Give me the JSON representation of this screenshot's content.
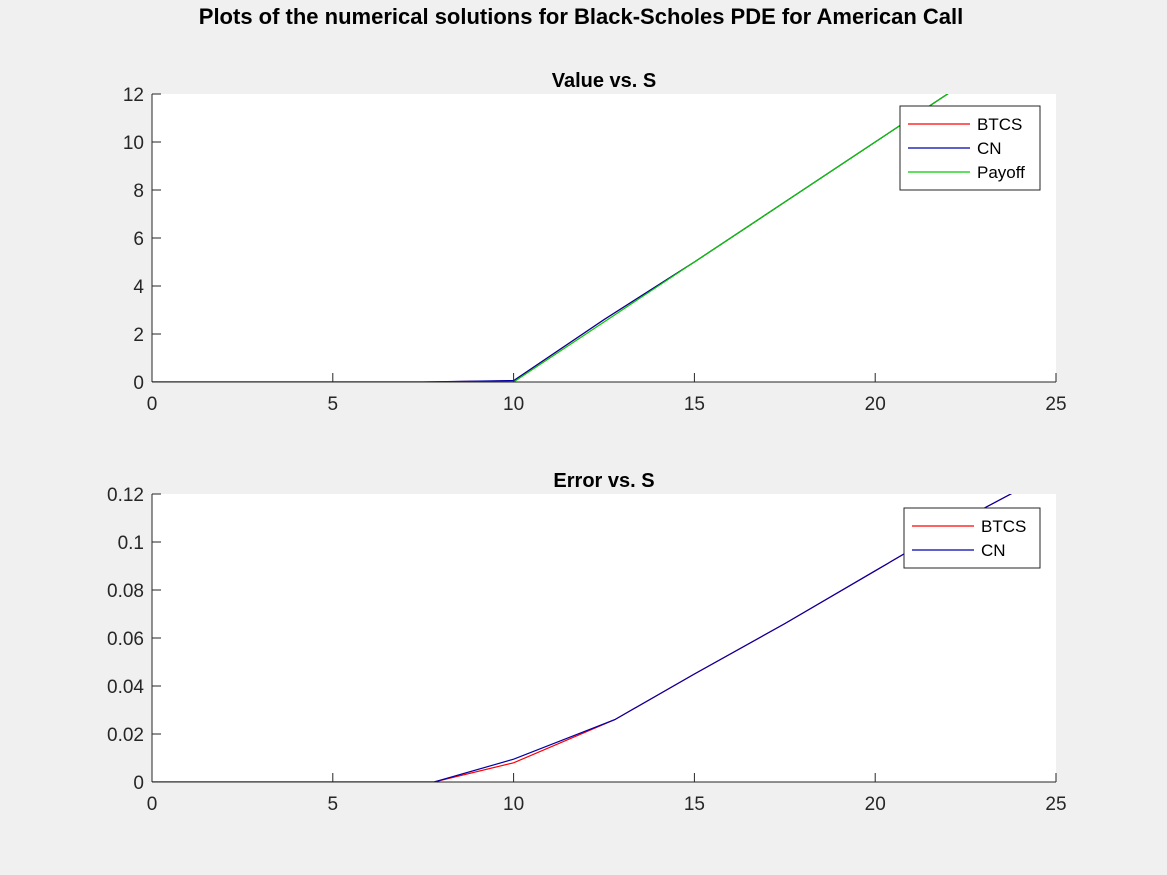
{
  "figure": {
    "suptitle": "Plots of the numerical solutions for Black-Scholes PDE for American Call"
  },
  "chart_data": [
    {
      "type": "line",
      "title": "Value vs. S",
      "xlabel": "",
      "ylabel": "",
      "xlim": [
        0,
        25
      ],
      "ylim": [
        0,
        12
      ],
      "xticks": [
        0,
        5,
        10,
        15,
        20,
        25
      ],
      "yticks": [
        0,
        2,
        4,
        6,
        8,
        10,
        12
      ],
      "xtick_labels": [
        "0",
        "5",
        "10",
        "15",
        "20",
        "25"
      ],
      "ytick_labels": [
        "0",
        "2",
        "4",
        "6",
        "8",
        "10",
        "12"
      ],
      "grid": false,
      "legend_position": "top-right",
      "series": [
        {
          "name": "BTCS",
          "color": "#ff0000",
          "x": [
            0,
            2.5,
            5,
            7.5,
            10,
            12.5,
            15,
            17.5,
            20,
            22.5,
            25
          ],
          "y": [
            0,
            0,
            0,
            0,
            0.05,
            2.6,
            5.0,
            7.5,
            10.0,
            12.5,
            15.0
          ]
        },
        {
          "name": "CN",
          "color": "#0000aa",
          "x": [
            0,
            2.5,
            5,
            7.5,
            10,
            12.5,
            15,
            17.5,
            20,
            22.5,
            25
          ],
          "y": [
            0,
            0,
            0,
            0,
            0.06,
            2.6,
            5.0,
            7.5,
            10.0,
            12.5,
            15.0
          ]
        },
        {
          "name": "Payoff",
          "color": "#00cc00",
          "x": [
            0,
            2.5,
            5,
            7.5,
            10,
            12.5,
            15,
            17.5,
            20,
            22.5,
            25
          ],
          "y": [
            0,
            0,
            0,
            0,
            0,
            2.5,
            5.0,
            7.5,
            10.0,
            12.5,
            15.0
          ]
        }
      ]
    },
    {
      "type": "line",
      "title": "Error vs. S",
      "xlabel": "",
      "ylabel": "",
      "xlim": [
        0,
        25
      ],
      "ylim": [
        0,
        0.12
      ],
      "xticks": [
        0,
        5,
        10,
        15,
        20,
        25
      ],
      "yticks": [
        0,
        0.02,
        0.04,
        0.06,
        0.08,
        0.1,
        0.12
      ],
      "xtick_labels": [
        "0",
        "5",
        "10",
        "15",
        "20",
        "25"
      ],
      "ytick_labels": [
        "0",
        "0.02",
        "0.04",
        "0.06",
        "0.08",
        "0.1",
        "0.12"
      ],
      "grid": false,
      "legend_position": "top-right",
      "series": [
        {
          "name": "BTCS",
          "color": "#ff0000",
          "x": [
            0,
            2.5,
            5,
            7.5,
            7.8,
            10,
            12.8,
            15,
            17.5,
            20,
            22.5,
            25
          ],
          "y": [
            0,
            0,
            0,
            0,
            0,
            0.008,
            0.026,
            0.045,
            0.066,
            0.088,
            0.11,
            0.13
          ]
        },
        {
          "name": "CN",
          "color": "#0000aa",
          "x": [
            0,
            2.5,
            5,
            7.5,
            7.8,
            10,
            12.8,
            15,
            17.5,
            20,
            22.5,
            25
          ],
          "y": [
            0,
            0,
            0,
            0,
            0,
            0.0095,
            0.026,
            0.045,
            0.066,
            0.088,
            0.11,
            0.13
          ]
        }
      ]
    }
  ]
}
